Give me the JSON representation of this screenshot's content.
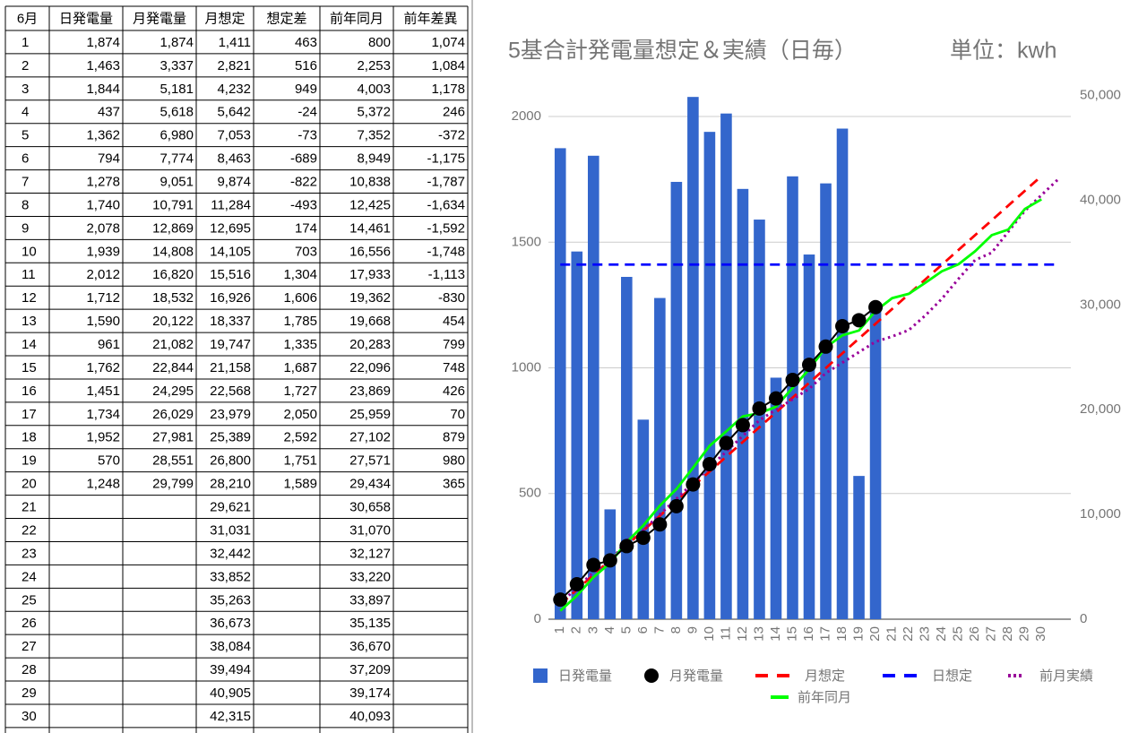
{
  "table": {
    "headers": [
      "6月",
      "日発電量",
      "月発電量",
      "月想定",
      "想定差",
      "前年同月",
      "前年差異"
    ],
    "rows": [
      [
        "1",
        "1,874",
        "1,874",
        "1,411",
        "463",
        "800",
        "1,074"
      ],
      [
        "2",
        "1,463",
        "3,337",
        "2,821",
        "516",
        "2,253",
        "1,084"
      ],
      [
        "3",
        "1,844",
        "5,181",
        "4,232",
        "949",
        "4,003",
        "1,178"
      ],
      [
        "4",
        "437",
        "5,618",
        "5,642",
        "-24",
        "5,372",
        "246"
      ],
      [
        "5",
        "1,362",
        "6,980",
        "7,053",
        "-73",
        "7,352",
        "-372"
      ],
      [
        "6",
        "794",
        "7,774",
        "8,463",
        "-689",
        "8,949",
        "-1,175"
      ],
      [
        "7",
        "1,278",
        "9,051",
        "9,874",
        "-822",
        "10,838",
        "-1,787"
      ],
      [
        "8",
        "1,740",
        "10,791",
        "11,284",
        "-493",
        "12,425",
        "-1,634"
      ],
      [
        "9",
        "2,078",
        "12,869",
        "12,695",
        "174",
        "14,461",
        "-1,592"
      ],
      [
        "10",
        "1,939",
        "14,808",
        "14,105",
        "703",
        "16,556",
        "-1,748"
      ],
      [
        "11",
        "2,012",
        "16,820",
        "15,516",
        "1,304",
        "17,933",
        "-1,113"
      ],
      [
        "12",
        "1,712",
        "18,532",
        "16,926",
        "1,606",
        "19,362",
        "-830"
      ],
      [
        "13",
        "1,590",
        "20,122",
        "18,337",
        "1,785",
        "19,668",
        "454"
      ],
      [
        "14",
        "961",
        "21,082",
        "19,747",
        "1,335",
        "20,283",
        "799"
      ],
      [
        "15",
        "1,762",
        "22,844",
        "21,158",
        "1,687",
        "22,096",
        "748"
      ],
      [
        "16",
        "1,451",
        "24,295",
        "22,568",
        "1,727",
        "23,869",
        "426"
      ],
      [
        "17",
        "1,734",
        "26,029",
        "23,979",
        "2,050",
        "25,959",
        "70"
      ],
      [
        "18",
        "1,952",
        "27,981",
        "25,389",
        "2,592",
        "27,102",
        "879"
      ],
      [
        "19",
        "570",
        "28,551",
        "26,800",
        "1,751",
        "27,571",
        "980"
      ],
      [
        "20",
        "1,248",
        "29,799",
        "28,210",
        "1,589",
        "29,434",
        "365"
      ],
      [
        "21",
        null,
        null,
        "29,621",
        null,
        "30,658",
        null
      ],
      [
        "22",
        null,
        null,
        "31,031",
        null,
        "31,070",
        null
      ],
      [
        "23",
        null,
        null,
        "32,442",
        null,
        "32,127",
        null
      ],
      [
        "24",
        null,
        null,
        "33,852",
        null,
        "33,220",
        null
      ],
      [
        "25",
        null,
        null,
        "35,263",
        null,
        "33,897",
        null
      ],
      [
        "26",
        null,
        null,
        "36,673",
        null,
        "35,135",
        null
      ],
      [
        "27",
        null,
        null,
        "38,084",
        null,
        "36,670",
        null
      ],
      [
        "28",
        null,
        null,
        "39,494",
        null,
        "37,209",
        null
      ],
      [
        "29",
        null,
        null,
        "40,905",
        null,
        "39,174",
        null
      ],
      [
        "30",
        null,
        null,
        "42,315",
        null,
        "40,093",
        null
      ]
    ]
  },
  "chart_data": {
    "type": "combo",
    "title": "5基合計発電量想定＆実績（日毎）",
    "subtitle": "単位：kwh",
    "categories": [
      "1",
      "2",
      "3",
      "4",
      "5",
      "6",
      "7",
      "8",
      "9",
      "10",
      "11",
      "12",
      "13",
      "14",
      "15",
      "16",
      "17",
      "18",
      "19",
      "20",
      "21",
      "22",
      "23",
      "24",
      "25",
      "26",
      "27",
      "28",
      "29",
      "30",
      null
    ],
    "ylim": [
      0,
      2100
    ],
    "yticks": [
      0,
      500,
      1000,
      1500,
      2000
    ],
    "y2lim": [
      0,
      50400
    ],
    "y2ticks": [
      0,
      {
        "value": 10000,
        "label": "10,000"
      },
      {
        "value": 20000,
        "label": "20,000"
      },
      {
        "value": 30000,
        "label": "30,000"
      },
      {
        "value": 40000,
        "label": "40,000"
      },
      {
        "value": 50000,
        "label": "50,000"
      }
    ],
    "grid": true,
    "legend": "bottom",
    "series": [
      {
        "name": "日発電量",
        "type": "bar",
        "color": "#3366cc",
        "axis": "y",
        "values": [
          1874,
          1463,
          1844,
          437,
          1362,
          794,
          1278,
          1740,
          2078,
          1939,
          2012,
          1712,
          1590,
          961,
          1762,
          1451,
          1734,
          1952,
          570,
          1248,
          null,
          null,
          null,
          null,
          null,
          null,
          null,
          null,
          null,
          null,
          null
        ]
      },
      {
        "name": "月発電量",
        "type": "line",
        "style": "solid",
        "marker": "circle",
        "color": "#000000",
        "axis": "y2",
        "values": [
          1874,
          3337,
          5181,
          5618,
          6980,
          7774,
          9051,
          10791,
          12869,
          14808,
          16820,
          18532,
          20122,
          21082,
          22844,
          24295,
          26029,
          27981,
          28551,
          29799,
          null,
          null,
          null,
          null,
          null,
          null,
          null,
          null,
          null,
          null,
          null
        ]
      },
      {
        "name": "月想定",
        "type": "line",
        "style": "dashed",
        "color": "#ff0000",
        "axis": "y2",
        "values": [
          1411,
          2821,
          4232,
          5642,
          7053,
          8463,
          9874,
          11284,
          12695,
          14105,
          15516,
          16926,
          18337,
          19747,
          21158,
          22568,
          23979,
          25389,
          26800,
          28210,
          29621,
          31031,
          32442,
          33852,
          35263,
          36673,
          38084,
          39494,
          40905,
          42315,
          null
        ]
      },
      {
        "name": "日想定",
        "type": "line",
        "style": "dashed",
        "color": "#0000ff",
        "axis": "y",
        "values": [
          1411,
          1411,
          1411,
          1411,
          1411,
          1411,
          1411,
          1411,
          1411,
          1411,
          1411,
          1411,
          1411,
          1411,
          1411,
          1411,
          1411,
          1411,
          1411,
          1411,
          1411,
          1411,
          1411,
          1411,
          1411,
          1411,
          1411,
          1411,
          1411,
          1411,
          1411
        ]
      },
      {
        "name": "前月実績",
        "type": "line",
        "style": "dotted",
        "color": "#990099",
        "axis": "y2",
        "values": [
          1500,
          3000,
          4500,
          5500,
          7500,
          8500,
          10000,
          11500,
          13000,
          14500,
          16000,
          17500,
          19000,
          20000,
          21000,
          22000,
          23500,
          24500,
          25500,
          26500,
          27000,
          27600,
          29000,
          30600,
          32500,
          34300,
          35000,
          37000,
          39000,
          40500,
          42000
        ]
      },
      {
        "name": "前年同月",
        "type": "line",
        "style": "solid",
        "color": "#00ff00",
        "axis": "y2",
        "values": [
          800,
          2253,
          4003,
          5372,
          7352,
          8949,
          10838,
          12425,
          14461,
          16556,
          17933,
          19362,
          19668,
          20283,
          22096,
          23869,
          25959,
          27102,
          27571,
          29434,
          30658,
          31070,
          32127,
          33220,
          33897,
          35135,
          36670,
          37209,
          39174,
          40093,
          null
        ]
      }
    ]
  }
}
